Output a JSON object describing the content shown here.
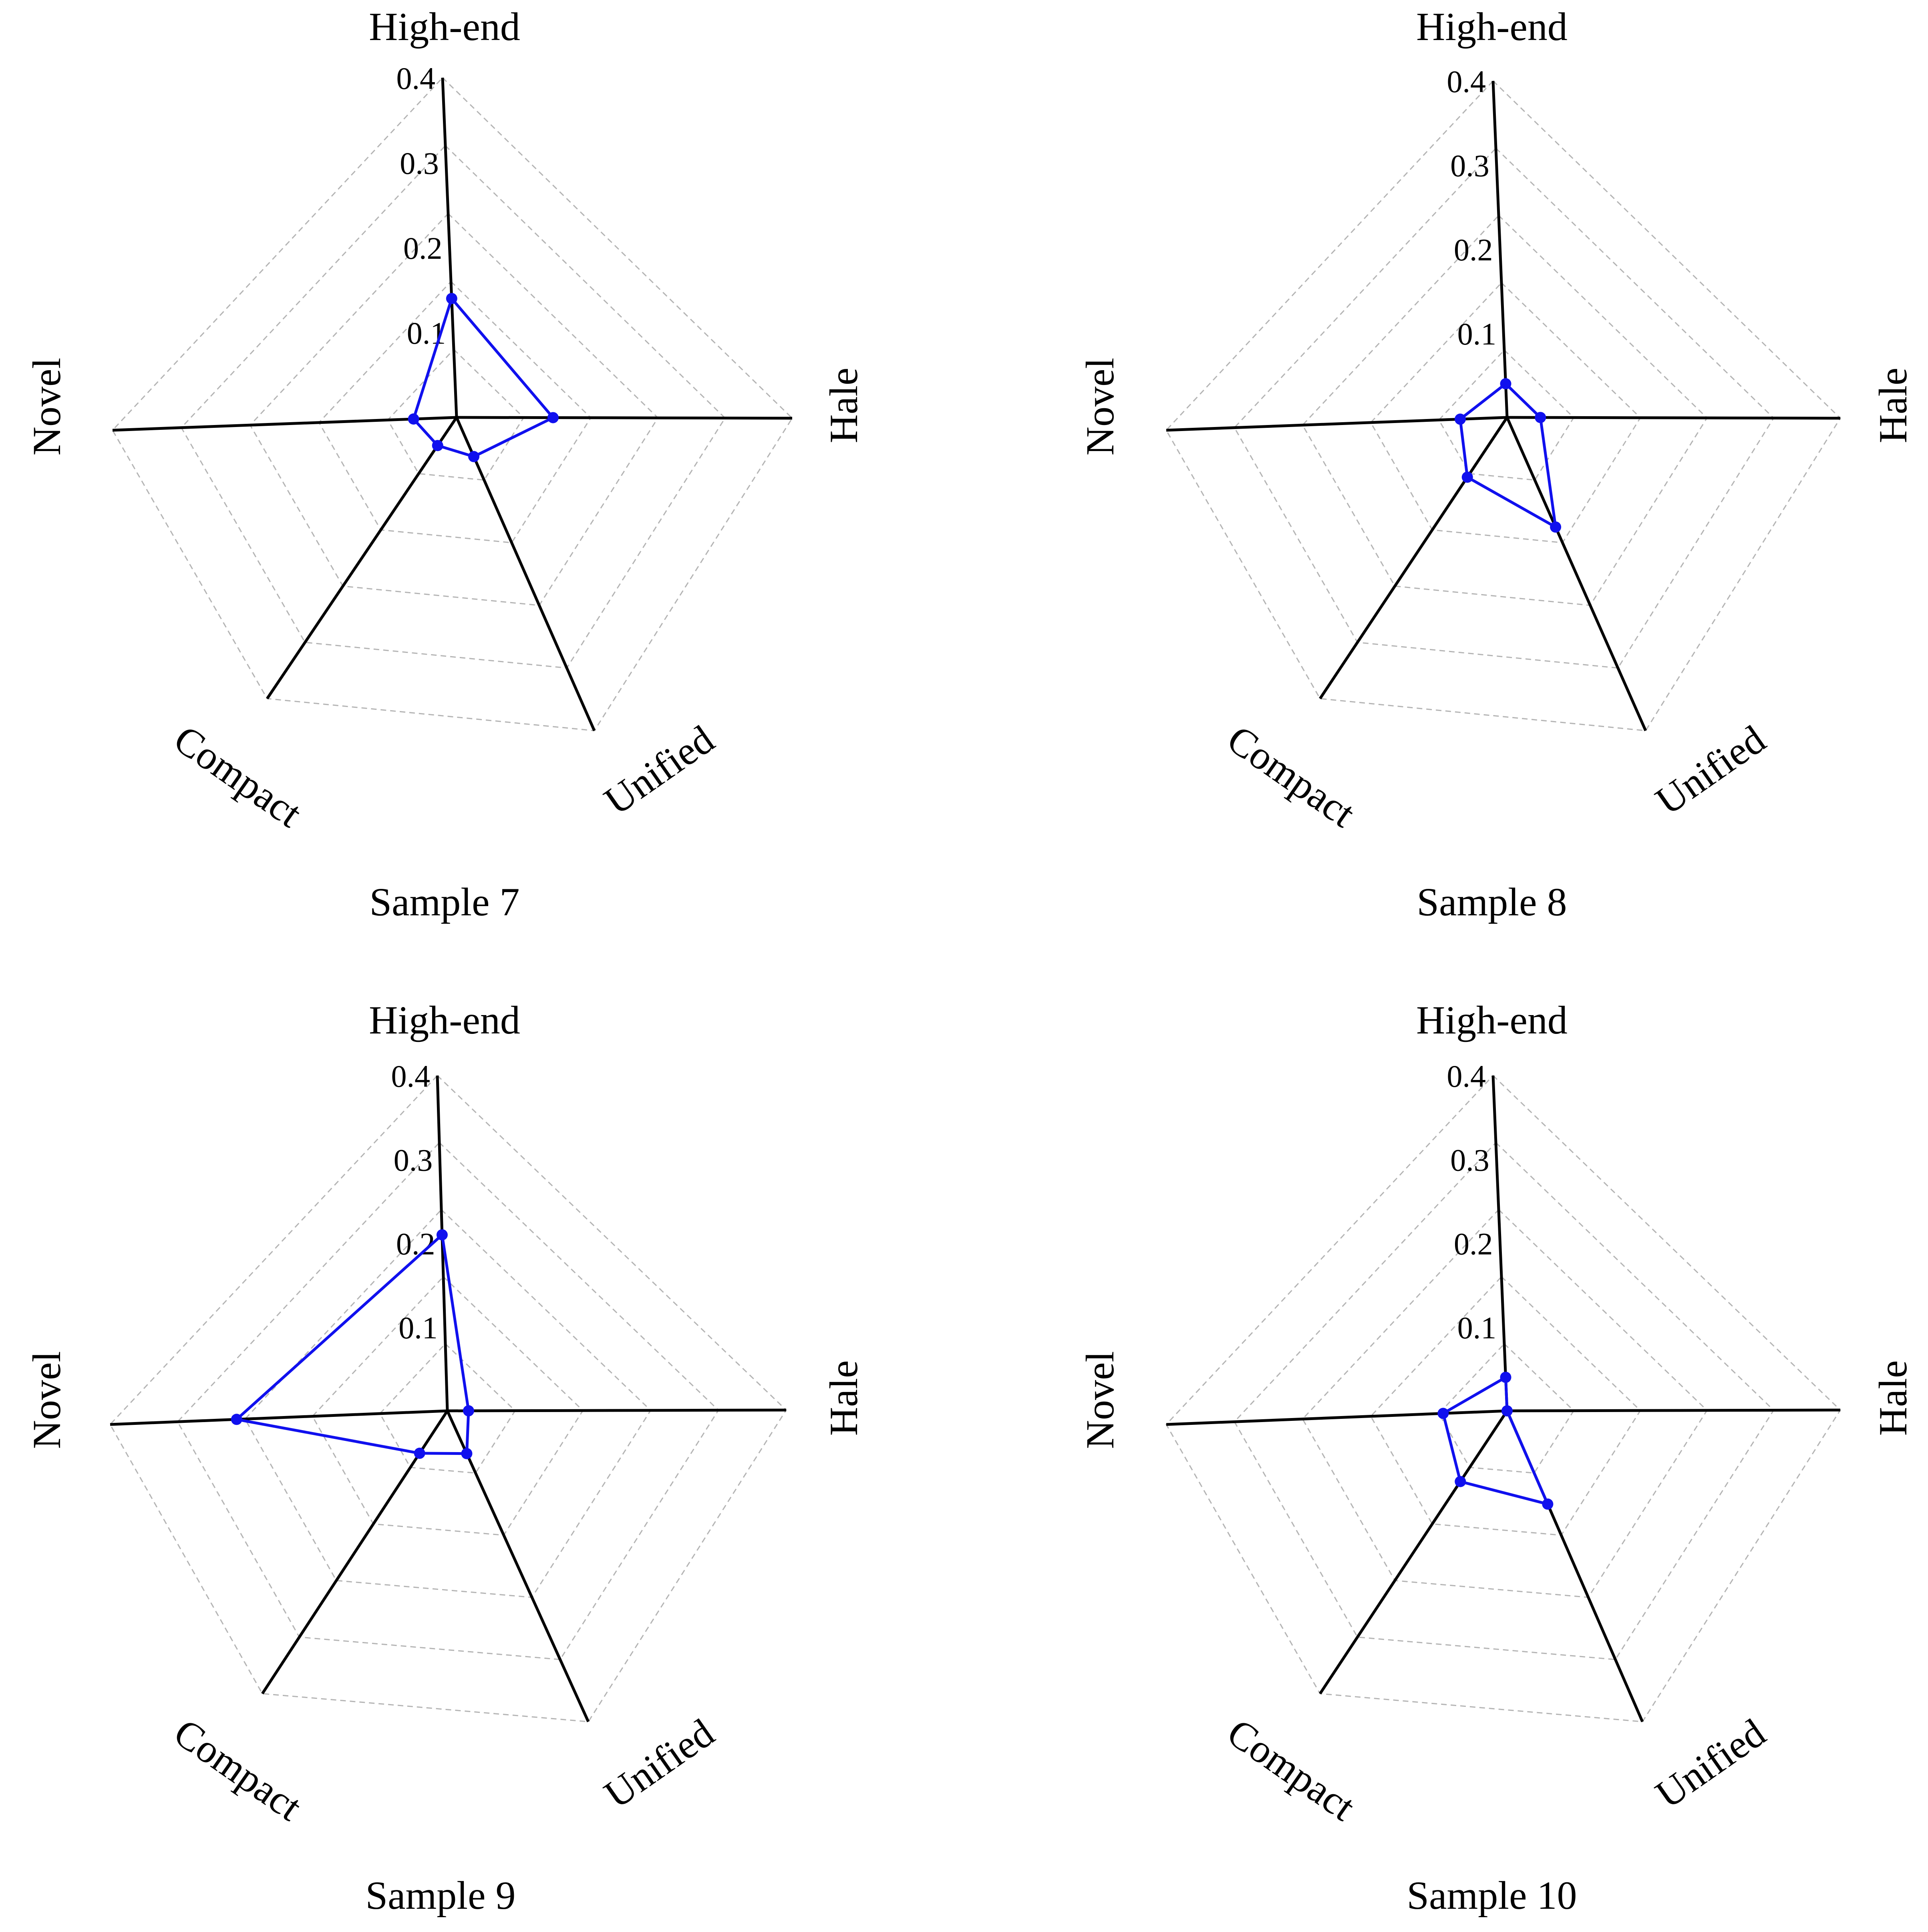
{
  "colors": {
    "series": "#1010ee",
    "axis": "#000000",
    "grid": "#b4b4b4"
  },
  "chart_data": [
    {
      "type": "radar",
      "title": "Sample 7",
      "axes": [
        "High-end",
        "Hale",
        "Unified",
        "Compact",
        "Novel"
      ],
      "tick_labels": [
        "0.1",
        "0.2",
        "0.3",
        "0.4"
      ],
      "range": [
        0,
        0.4
      ],
      "grid_levels": 5,
      "series": [
        {
          "name": "Sample 7",
          "values": [
            0.14,
            0.115,
            0.05,
            0.04,
            0.05
          ]
        }
      ]
    },
    {
      "type": "radar",
      "title": "Sample 8",
      "axes": [
        "High-end",
        "Hale",
        "Unified",
        "Compact",
        "Novel"
      ],
      "tick_labels": [
        "0.1",
        "0.2",
        "0.3",
        "0.4"
      ],
      "range": [
        0,
        0.4
      ],
      "grid_levels": 5,
      "series": [
        {
          "name": "Sample 8",
          "values": [
            0.04,
            0.04,
            0.14,
            0.085,
            0.055
          ]
        }
      ]
    },
    {
      "type": "radar",
      "title": "Sample 9",
      "axes": [
        "High-end",
        "Hale",
        "Unified",
        "Compact",
        "Novel"
      ],
      "tick_labels": [
        "0.1",
        "0.2",
        "0.3",
        "0.4"
      ],
      "range": [
        0,
        0.4
      ],
      "grid_levels": 5,
      "series": [
        {
          "name": "Sample 9",
          "values": [
            0.21,
            0.025,
            0.055,
            0.06,
            0.25
          ]
        }
      ]
    },
    {
      "type": "radar",
      "title": "Sample 10",
      "axes": [
        "High-end",
        "Hale",
        "Unified",
        "Compact",
        "Novel"
      ],
      "tick_labels": [
        "0.1",
        "0.2",
        "0.3",
        "0.4"
      ],
      "range": [
        0,
        0.4
      ],
      "grid_levels": 5,
      "series": [
        {
          "name": "Sample 10",
          "values": [
            0.04,
            0.0,
            0.12,
            0.1,
            0.075
          ]
        }
      ]
    }
  ]
}
